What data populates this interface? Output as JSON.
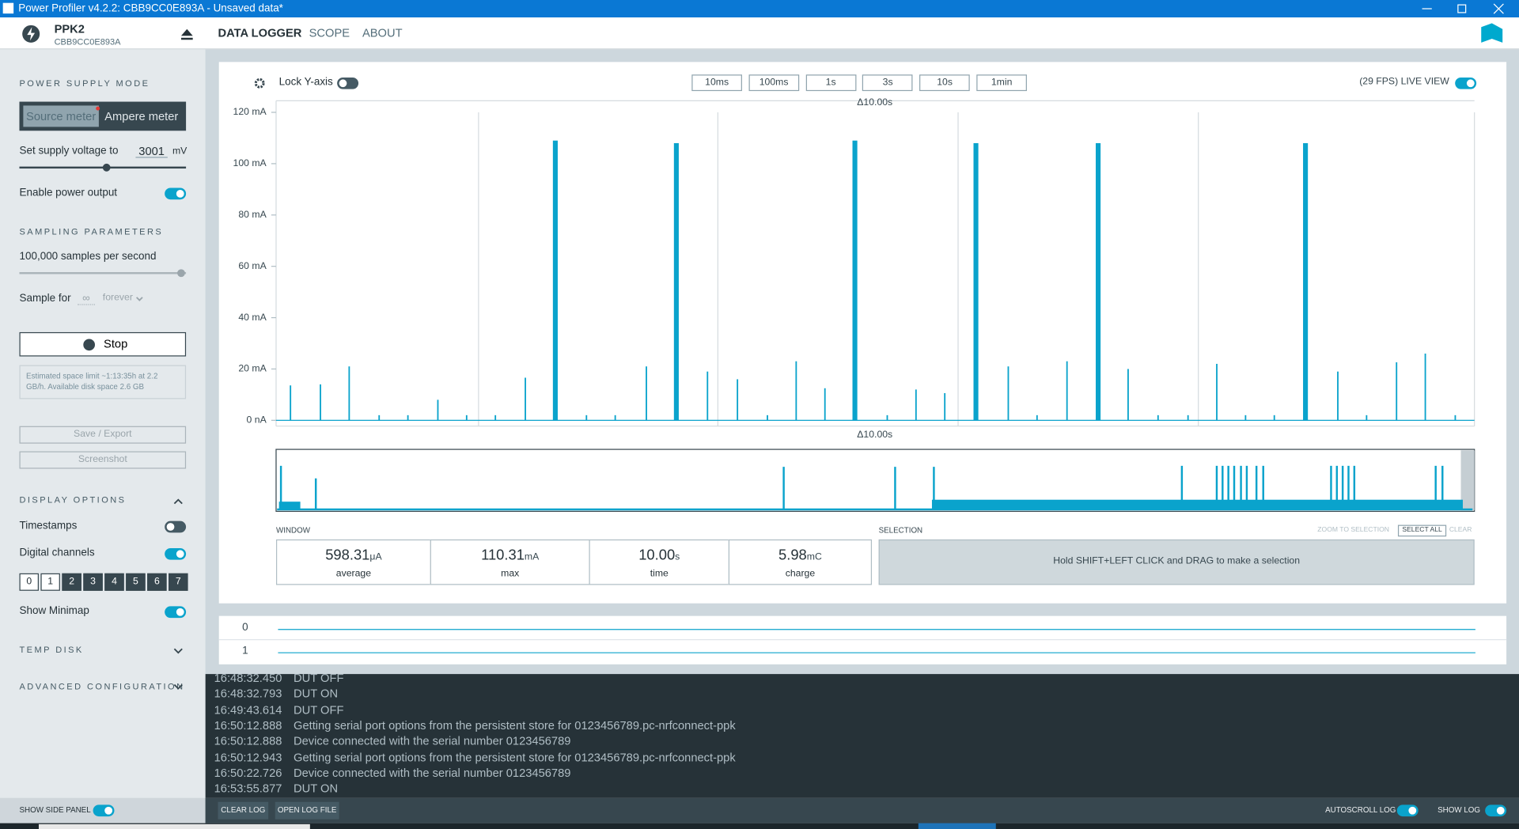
{
  "title_bar": {
    "title": "Power Profiler v4.2.2: CBB9CC0E893A - Unsaved data*"
  },
  "header": {
    "device": "PPK2",
    "serial": "CBB9CC0E893A",
    "tabs": [
      "DATA LOGGER",
      "SCOPE",
      "ABOUT"
    ]
  },
  "sidebar": {
    "power_supply": {
      "heading": "POWER SUPPLY MODE",
      "modes": [
        "Source meter",
        "Ampere meter"
      ],
      "voltage_label": "Set supply voltage to",
      "voltage": "3001",
      "voltage_unit": "mV",
      "enable_output": "Enable power output"
    },
    "sampling": {
      "heading": "SAMPLING PARAMETERS",
      "rate": "100,000 samples per second",
      "sample_for": "Sample for",
      "duration": "∞",
      "duration_unit": "forever"
    },
    "stop": "Stop",
    "space_note": "Estimated space limit ~1:13:35h at 2.2 GB/h. Available disk space 2.6 GB",
    "save": "Save / Export",
    "screenshot": "Screenshot",
    "display": {
      "heading": "DISPLAY OPTIONS",
      "timestamps": "Timestamps",
      "digital_channels": "Digital channels",
      "channels": [
        "0",
        "1",
        "2",
        "3",
        "4",
        "5",
        "6",
        "7"
      ],
      "minimap": "Show Minimap"
    },
    "temp_disk": "TEMP DISK",
    "advanced": "ADVANCED CONFIGURATION",
    "show_side_panel": "SHOW SIDE PANEL"
  },
  "toolbar": {
    "lock_y": "Lock Y-axis",
    "time_buttons": [
      "10ms",
      "100ms",
      "1s",
      "3s",
      "10s",
      "1min"
    ],
    "live_view": "(29 FPS) LIVE VIEW"
  },
  "chart_data": {
    "type": "spike",
    "window_labels": [
      "Δ10.00s",
      "Δ10.00s"
    ],
    "xlim": [
      0,
      10
    ],
    "ylim": [
      0,
      120
    ],
    "yticks": [
      {
        "value": 0,
        "label": "0 nA"
      },
      {
        "value": 20,
        "label": "20 mA"
      },
      {
        "value": 40,
        "label": "40 mA"
      },
      {
        "value": 60,
        "label": "60 mA"
      },
      {
        "value": 80,
        "label": "80 mA"
      },
      {
        "value": 100,
        "label": "100 mA"
      },
      {
        "value": 120,
        "label": "120 mA"
      }
    ],
    "grid": false,
    "color": "#0aa3cc",
    "x": [
      0.12,
      0.37,
      0.61,
      0.86,
      1.1,
      1.35,
      1.59,
      1.83,
      2.08,
      2.33,
      2.59,
      2.83,
      3.09,
      3.34,
      3.6,
      3.85,
      4.1,
      4.34,
      4.58,
      4.83,
      5.1,
      5.34,
      5.58,
      5.84,
      6.11,
      6.35,
      6.6,
      6.86,
      7.11,
      7.36,
      7.61,
      7.85,
      8.09,
      8.33,
      8.59,
      8.86,
      9.1,
      9.35,
      9.59,
      9.84
    ],
    "values": [
      13.6,
      14,
      21,
      2,
      2,
      8,
      2,
      2,
      16.6,
      109,
      2,
      2,
      21,
      108,
      19,
      16,
      2,
      23,
      12.5,
      109,
      2,
      12,
      10.6,
      108,
      21,
      2,
      23,
      108,
      20,
      2,
      2,
      22,
      2,
      2,
      108,
      19,
      2,
      22.6,
      26,
      2
    ]
  },
  "stats": {
    "window": {
      "heading": "WINDOW",
      "items": [
        {
          "value": "598.31",
          "unit": "μA",
          "label": "average"
        },
        {
          "value": "110.31",
          "unit": "mA",
          "label": "max"
        },
        {
          "value": "10.00",
          "unit": "s",
          "label": "time"
        },
        {
          "value": "5.98",
          "unit": "mC",
          "label": "charge"
        }
      ]
    },
    "selection": {
      "heading": "SELECTION",
      "actions": [
        "ZOOM TO SELECTION",
        "SELECT ALL",
        "CLEAR"
      ],
      "hint": "Hold SHIFT+LEFT CLICK and DRAG to make a selection"
    }
  },
  "digital_rows": [
    "0",
    "1"
  ],
  "log": {
    "entries": [
      {
        "time": "16:48:32.450",
        "message": "DUT OFF"
      },
      {
        "time": "16:48:32.793",
        "message": "DUT ON"
      },
      {
        "time": "16:49:43.614",
        "message": "DUT OFF"
      },
      {
        "time": "16:50:12.888",
        "message": "Getting serial port options from the persistent store for 0123456789.pc-nrfconnect-ppk"
      },
      {
        "time": "16:50:12.888",
        "message": "Device connected with the serial number 0123456789"
      },
      {
        "time": "16:50:12.943",
        "message": "Getting serial port options from the persistent store for 0123456789.pc-nrfconnect-ppk"
      },
      {
        "time": "16:50:22.726",
        "message": "Device connected with the serial number 0123456789"
      },
      {
        "time": "16:53:55.877",
        "message": "DUT ON"
      }
    ],
    "buttons": [
      "CLEAR LOG",
      "OPEN LOG FILE"
    ],
    "autoscroll": "AUTOSCROLL LOG",
    "show_log": "SHOW LOG"
  }
}
